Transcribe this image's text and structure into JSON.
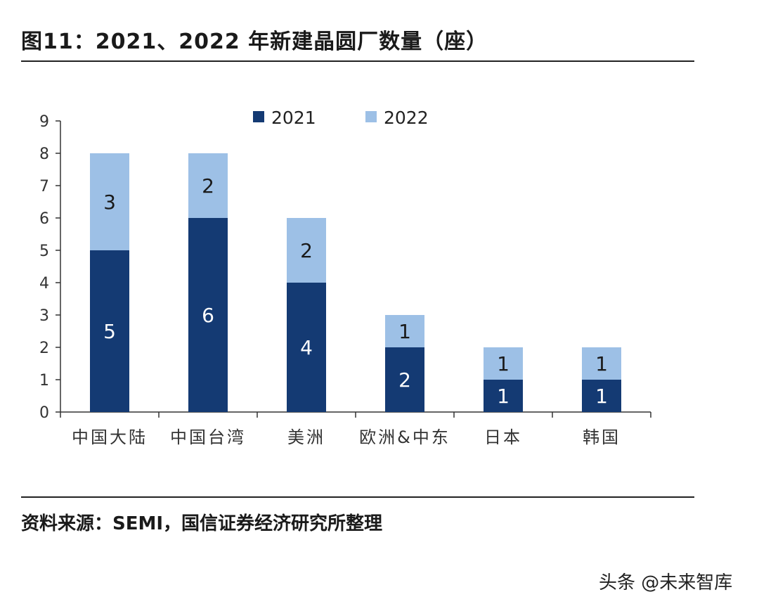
{
  "title": "图11：2021、2022 年新建晶圆厂数量（座）",
  "source": "资料来源：SEMI，国信证券经济研究所整理",
  "watermark": "头条 @未来智库",
  "colors": {
    "series_2021": "#143a73",
    "series_2022": "#9dc0e6",
    "label_dark": "#ffffff",
    "label_light": "#1a1a1a"
  },
  "chart_data": {
    "type": "bar",
    "stacked": true,
    "title": "2021、2022 年新建晶圆厂数量（座）",
    "categories": [
      "中国大陆",
      "中国台湾",
      "美洲",
      "欧洲&中东",
      "日本",
      "韩国"
    ],
    "series": [
      {
        "name": "2021",
        "values": [
          5,
          6,
          4,
          2,
          1,
          1
        ]
      },
      {
        "name": "2022",
        "values": [
          3,
          2,
          2,
          1,
          1,
          1
        ]
      }
    ],
    "yticks": [
      0,
      1,
      2,
      3,
      4,
      5,
      6,
      7,
      8,
      9
    ],
    "ylim": [
      0,
      9
    ],
    "xlabel": "",
    "ylabel": "",
    "legend": "top-center",
    "grid": false
  }
}
